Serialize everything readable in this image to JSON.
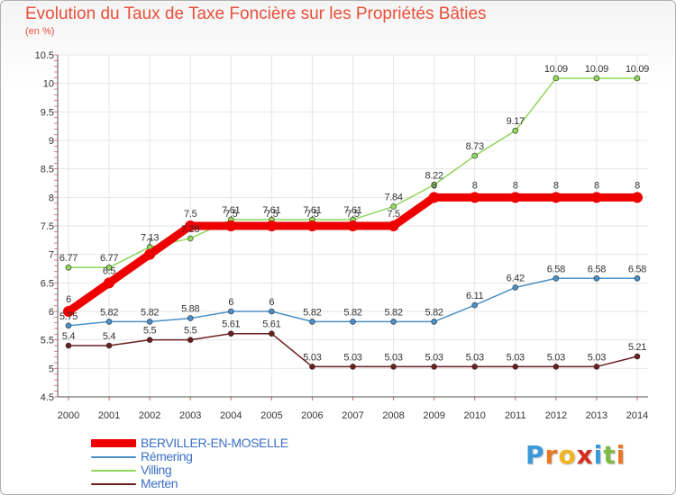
{
  "header": {
    "title": "Evolution du Taux de Taxe Foncière sur les Propriétés Bâties",
    "subtitle": "(en %)"
  },
  "logo": {
    "letters": [
      "P",
      "r",
      "o",
      "x",
      "i",
      "t",
      "i"
    ],
    "colors": [
      "#3a9ad9",
      "#e87722",
      "#f2b51c",
      "#d62d20",
      "#3a9ad9",
      "#7dbb42",
      "#e87722"
    ]
  },
  "chart_data": {
    "type": "line",
    "title": "Evolution du Taux de Taxe Foncière sur les Propriétés Bâties",
    "ylabel": "(en %)",
    "xlabel": "",
    "ylim": [
      4.5,
      10.5
    ],
    "yticks": [
      "4.5",
      "5",
      "5.5",
      "6",
      "6.5",
      "7",
      "7.5",
      "8",
      "8.5",
      "9",
      "9.5",
      "10",
      "10.5"
    ],
    "x": [
      "2000",
      "2001",
      "2002",
      "2003",
      "2004",
      "2005",
      "2006",
      "2007",
      "2008",
      "2009",
      "2010",
      "2011",
      "2012",
      "2013",
      "2014"
    ],
    "grid": true,
    "legend_position": "bottom-left",
    "series": [
      {
        "name": "BERVILLER-EN-MOSELLE",
        "color": "#ee0000",
        "values": [
          6,
          6.5,
          7,
          7.5,
          7.5,
          7.5,
          7.5,
          7.5,
          7.5,
          8,
          8,
          8,
          8,
          8,
          8
        ],
        "labels": [
          "6",
          "6.5",
          "7",
          "7.5",
          "7.5",
          "7.5",
          "7.5",
          "7.5",
          "7.5",
          "8",
          "8",
          "8",
          "8",
          "8",
          "8"
        ]
      },
      {
        "name": "Rémering",
        "color": "#4a90c8",
        "values": [
          5.75,
          5.82,
          5.82,
          5.88,
          6,
          6,
          5.82,
          5.82,
          5.82,
          5.82,
          6.11,
          6.42,
          6.58,
          6.58,
          6.58
        ],
        "labels": [
          "5.75",
          "5.82",
          "5.82",
          "5.88",
          "6",
          "6",
          "5.82",
          "5.82",
          "5.82",
          "5.82",
          "6.11",
          "6.42",
          "6.58",
          "6.58",
          "6.58"
        ]
      },
      {
        "name": "Villing",
        "color": "#8fd65a",
        "values": [
          6.77,
          6.77,
          7.13,
          7.28,
          7.61,
          7.61,
          7.61,
          7.61,
          7.84,
          8.22,
          8.73,
          9.17,
          10.09,
          10.09,
          10.09
        ],
        "labels": [
          "6.77",
          "6.77",
          "7.13",
          "7.28",
          "7.61",
          "7.61",
          "7.61",
          "7.61",
          "7.84",
          "8.22",
          "8.73",
          "9.17",
          "10.09",
          "10.09",
          "10.09"
        ]
      },
      {
        "name": "Merten",
        "color": "#6b1e1e",
        "values": [
          5.4,
          5.4,
          5.5,
          5.5,
          5.61,
          5.61,
          5.03,
          5.03,
          5.03,
          5.03,
          5.03,
          5.03,
          5.03,
          5.03,
          5.21
        ],
        "labels": [
          "5.4",
          "5.4",
          "5.5",
          "5.5",
          "5.61",
          "5.61",
          "5.03",
          "5.03",
          "5.03",
          "5.03",
          "5.03",
          "5.03",
          "5.03",
          "5.03",
          "5.21"
        ]
      }
    ]
  }
}
